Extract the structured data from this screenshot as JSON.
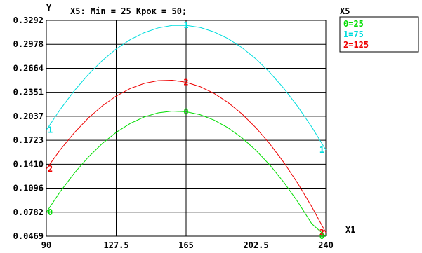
{
  "chart_data": {
    "type": "line",
    "title": "X5: Min = 25 Крок = 50;",
    "xlabel": "X1",
    "ylabel": "Y",
    "xlim": [
      90,
      240
    ],
    "ylim": [
      0.0469,
      0.3292
    ],
    "x_ticks": [
      "90",
      "127.5",
      "165",
      "202.5",
      "240"
    ],
    "y_ticks": [
      "0.3292",
      "0.2978",
      "0.2664",
      "0.2351",
      "0.2037",
      "0.1723",
      "0.1410",
      "0.1096",
      "0.0782",
      "0.0469"
    ],
    "grid": true,
    "legend_title": "X5",
    "legend_position": "right",
    "series": [
      {
        "name": "0=25",
        "marker": "0",
        "color": "#00dd00",
        "x": [
          90,
          97.5,
          105,
          112.5,
          120,
          127.5,
          135,
          142.5,
          150,
          157.5,
          165,
          172.5,
          180,
          187.5,
          195,
          202.5,
          210,
          217.5,
          225,
          232.5,
          240
        ],
        "y": [
          0.0782,
          0.1053,
          0.1293,
          0.1502,
          0.168,
          0.1827,
          0.1943,
          0.2028,
          0.2082,
          0.2105,
          0.2097,
          0.2058,
          0.1988,
          0.1887,
          0.1755,
          0.1592,
          0.1398,
          0.1173,
          0.0917,
          0.063,
          0.0469
        ]
      },
      {
        "name": "1=75",
        "marker": "1",
        "color": "#00dddd",
        "x": [
          90,
          97.5,
          105,
          112.5,
          120,
          127.5,
          135,
          142.5,
          150,
          157.5,
          165,
          172.5,
          180,
          187.5,
          195,
          202.5,
          210,
          217.5,
          225,
          232.5,
          240
        ],
        "y": [
          0.1857,
          0.2129,
          0.2371,
          0.2583,
          0.2765,
          0.2917,
          0.3039,
          0.3131,
          0.3193,
          0.3225,
          0.3227,
          0.3199,
          0.3141,
          0.3053,
          0.2935,
          0.2787,
          0.2609,
          0.2401,
          0.2163,
          0.1895,
          0.1597
        ]
      },
      {
        "name": "2=125",
        "marker": "2",
        "color": "#ee0000",
        "x": [
          90,
          97.5,
          105,
          112.5,
          120,
          127.5,
          135,
          142.5,
          150,
          157.5,
          165,
          172.5,
          180,
          187.5,
          195,
          202.5,
          210,
          217.5,
          225,
          232.5,
          240
        ],
        "y": [
          0.1347,
          0.16,
          0.1822,
          0.2013,
          0.2173,
          0.2302,
          0.24,
          0.2467,
          0.2503,
          0.2508,
          0.2482,
          0.2425,
          0.2337,
          0.2218,
          0.2068,
          0.1887,
          0.1675,
          0.1432,
          0.1158,
          0.0853,
          0.0517
        ]
      }
    ]
  }
}
